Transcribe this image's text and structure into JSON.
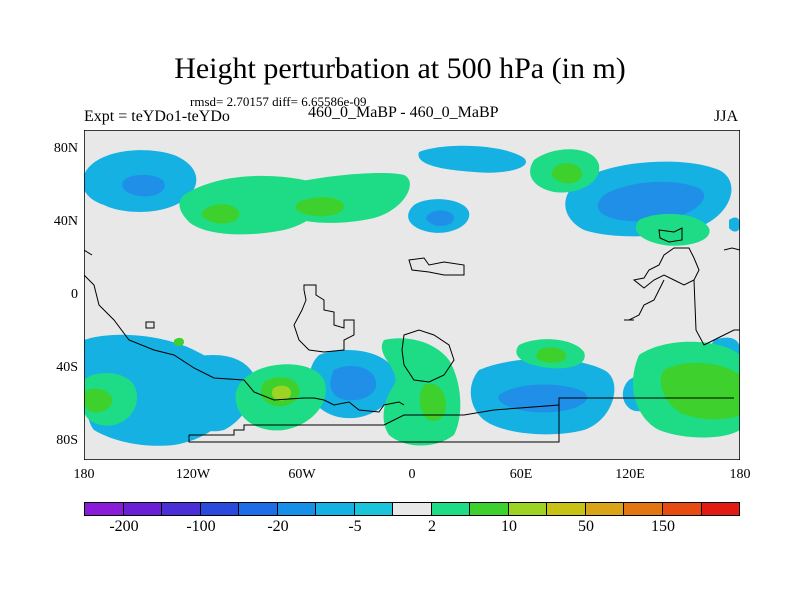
{
  "title": "Height perturbation at 500 hPa (in m)",
  "stats": "rmsd= 2.70157 diff= 6.65586e-09",
  "expt": "Expt = teYDo1-teYDo",
  "case": "460_0_MaBP - 460_0_MaBP",
  "season": "JJA",
  "lat_labels": [
    "80N",
    "40N",
    "0",
    "40S",
    "80S"
  ],
  "lon_labels": [
    "180",
    "120W",
    "60W",
    "0",
    "60E",
    "120E",
    "180"
  ],
  "colorbar": {
    "colors": [
      "#8a1bd8",
      "#6a1fd6",
      "#4b2ed6",
      "#2a49dd",
      "#1f6de6",
      "#168fe8",
      "#15b1e3",
      "#1ac5da",
      "#e8e8e8",
      "#1ddc85",
      "#3ed02c",
      "#9dd424",
      "#c8c214",
      "#d9a417",
      "#e27712",
      "#e84b12",
      "#e21b12"
    ],
    "labels": [
      "-200",
      "-100",
      "-20",
      "-5",
      "2",
      "10",
      "50",
      "150"
    ]
  }
}
